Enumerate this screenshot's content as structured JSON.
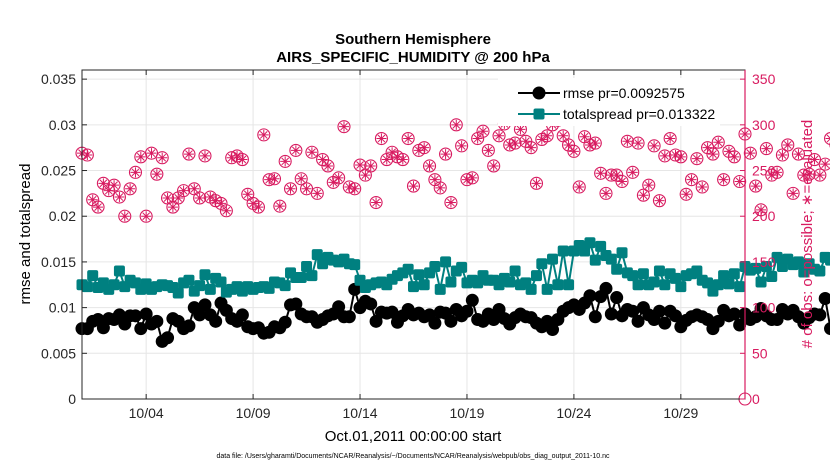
{
  "chart_data": {
    "type": "line",
    "title": "Southern Hemisphere",
    "subtitle": "AIRS_SPECIFIC_HUMIDITY @ 200 hPa",
    "xlabel": "Oct.01,2011 00:00:00 start",
    "ylabel": "rmse and totalspread",
    "ylabel_right": "# of obs: o=possible; ∗=evaluated",
    "footnote": "data file: /Users/gharamti/Documents/NCAR/Reanalysis/~/Documents/NCAR/Reanalysis/webpub/obs_diag_output_2011-10.nc",
    "xlim": [
      1,
      32
    ],
    "ylim": [
      0,
      0.036
    ],
    "ylim_right": [
      0,
      360
    ],
    "x_ticks": [
      {
        "v": 4,
        "label": "10/04"
      },
      {
        "v": 9,
        "label": "10/09"
      },
      {
        "v": 14,
        "label": "10/14"
      },
      {
        "v": 19,
        "label": "10/19"
      },
      {
        "v": 24,
        "label": "10/24"
      },
      {
        "v": 29,
        "label": "10/29"
      }
    ],
    "y_ticks": [
      {
        "v": 0,
        "label": "0"
      },
      {
        "v": 0.005,
        "label": "0.005"
      },
      {
        "v": 0.01,
        "label": "0.01"
      },
      {
        "v": 0.015,
        "label": "0.015"
      },
      {
        "v": 0.02,
        "label": "0.02"
      },
      {
        "v": 0.025,
        "label": "0.025"
      },
      {
        "v": 0.03,
        "label": "0.03"
      },
      {
        "v": 0.035,
        "label": "0.035"
      }
    ],
    "y_ticks_right": [
      {
        "v": 0,
        "label": "0"
      },
      {
        "v": 50,
        "label": "50"
      },
      {
        "v": 100,
        "label": "100"
      },
      {
        "v": 150,
        "label": "150"
      },
      {
        "v": 200,
        "label": "200"
      },
      {
        "v": 250,
        "label": "250"
      },
      {
        "v": 300,
        "label": "300"
      },
      {
        "v": 350,
        "label": "350"
      }
    ],
    "grid": true,
    "legend_position": "top-right",
    "x_start": 1.0,
    "x_step": 0.25,
    "series": [
      {
        "name": "rmse pr=0.0092575",
        "color": "#000000",
        "marker": "circle",
        "axis": "left",
        "values": [
          0.0077,
          0.0077,
          0.0085,
          0.0087,
          0.0078,
          0.0088,
          0.0087,
          0.0092,
          0.0082,
          0.0091,
          0.0091,
          0.0077,
          0.0093,
          0.0082,
          0.0085,
          0.0063,
          0.0067,
          0.0088,
          0.0085,
          0.0077,
          0.008,
          0.01,
          0.0092,
          0.0103,
          0.0092,
          0.0085,
          0.0105,
          0.0097,
          0.0088,
          0.0085,
          0.0092,
          0.0079,
          0.0077,
          0.0078,
          0.0072,
          0.0073,
          0.0079,
          0.0078,
          0.0084,
          0.0103,
          0.0104,
          0.0093,
          0.009,
          0.009,
          0.0084,
          0.0087,
          0.0091,
          0.0093,
          0.0101,
          0.009,
          0.009,
          0.012,
          0.01,
          0.0107,
          0.0104,
          0.0085,
          0.0095,
          0.0094,
          0.0095,
          0.0084,
          0.0091,
          0.0098,
          0.0092,
          0.0094,
          0.009,
          0.0092,
          0.0083,
          0.0095,
          0.0094,
          0.0085,
          0.0098,
          0.0091,
          0.0096,
          0.0108,
          0.0087,
          0.0085,
          0.0093,
          0.0087,
          0.0098,
          0.0088,
          0.0082,
          0.0089,
          0.0093,
          0.009,
          0.0089,
          0.0083,
          0.0079,
          0.0085,
          0.0076,
          0.0087,
          0.0096,
          0.01,
          0.0103,
          0.0098,
          0.0105,
          0.0113,
          0.009,
          0.0112,
          0.0121,
          0.0093,
          0.0111,
          0.0091,
          0.0098,
          0.0096,
          0.0085,
          0.01,
          0.0092,
          0.0087,
          0.0096,
          0.0083,
          0.0096,
          0.0091,
          0.0079,
          0.0086,
          0.009,
          0.0092,
          0.009,
          0.0087,
          0.0077,
          0.0085,
          0.0097,
          0.0091,
          0.0093,
          0.0081,
          0.0093,
          0.0087,
          0.009,
          0.0099,
          0.0091,
          0.0087,
          0.0087,
          0.0098,
          0.0093,
          0.0097,
          0.009,
          0.0083,
          0.0089,
          0.0093,
          0.0092,
          0.011,
          0.0077,
          0.0076
        ]
      },
      {
        "name": "totalspread pr=0.013322",
        "color": "#008080",
        "marker": "square",
        "axis": "left",
        "values": [
          0.0125,
          0.0123,
          0.0135,
          0.0122,
          0.0127,
          0.012,
          0.0125,
          0.014,
          0.0123,
          0.013,
          0.0127,
          0.012,
          0.0126,
          0.012,
          0.0123,
          0.0125,
          0.0124,
          0.0122,
          0.0116,
          0.0127,
          0.013,
          0.0118,
          0.0124,
          0.0136,
          0.012,
          0.0132,
          0.0128,
          0.0117,
          0.012,
          0.0123,
          0.0118,
          0.0123,
          0.012,
          0.0122,
          0.0123,
          0.0121,
          0.0128,
          0.0127,
          0.0124,
          0.0138,
          0.0133,
          0.0133,
          0.0145,
          0.0135,
          0.0158,
          0.0148,
          0.0155,
          0.0152,
          0.015,
          0.0153,
          0.0148,
          0.0147,
          0.013,
          0.0122,
          0.0125,
          0.0127,
          0.0128,
          0.0125,
          0.0131,
          0.0135,
          0.0138,
          0.0142,
          0.0123,
          0.0136,
          0.0125,
          0.0138,
          0.0145,
          0.012,
          0.015,
          0.0128,
          0.014,
          0.0144,
          0.0127,
          0.013,
          0.0127,
          0.0135,
          0.013,
          0.013,
          0.0125,
          0.0132,
          0.0128,
          0.014,
          0.0125,
          0.0127,
          0.012,
          0.0135,
          0.0148,
          0.012,
          0.0153,
          0.0125,
          0.0162,
          0.0125,
          0.0162,
          0.0168,
          0.0162,
          0.0171,
          0.0152,
          0.0167,
          0.0157,
          0.0153,
          0.0142,
          0.016,
          0.0138,
          0.0135,
          0.0125,
          0.0137,
          0.0125,
          0.0128,
          0.014,
          0.0125,
          0.0137,
          0.0132,
          0.0123,
          0.0135,
          0.0137,
          0.014,
          0.013,
          0.0127,
          0.0118,
          0.0125,
          0.0135,
          0.0126,
          0.0137,
          0.0123,
          0.0145,
          0.0141,
          0.0143,
          0.0128,
          0.0145,
          0.0134,
          0.0155,
          0.0145,
          0.0153,
          0.0147,
          0.015,
          0.0139,
          0.0148,
          0.0142,
          0.014,
          0.0155,
          0.0152,
          0.0137
        ]
      },
      {
        "name": "possible",
        "color": "#d81b60",
        "marker": "circle-open",
        "axis": "right",
        "values": [
          269,
          267,
          218,
          210,
          236,
          228,
          234,
          221,
          200,
          230,
          248,
          265,
          200,
          269,
          246,
          264,
          220,
          210,
          220,
          228,
          268,
          230,
          220,
          266,
          221,
          217,
          214,
          206,
          264,
          266,
          262,
          224,
          214,
          210,
          289,
          240,
          241,
          211,
          260,
          230,
          272,
          241,
          230,
          270,
          225,
          262,
          255,
          237,
          242,
          298,
          232,
          230,
          256,
          245,
          255,
          215,
          285,
          262,
          270,
          265,
          262,
          285,
          233,
          272,
          275,
          255,
          240,
          231,
          268,
          215,
          300,
          277,
          240,
          242,
          285,
          293,
          272,
          255,
          288,
          301,
          278,
          280,
          295,
          282,
          275,
          236,
          284,
          288,
          300,
          305,
          288,
          278,
          271,
          232,
          287,
          278,
          280,
          247,
          225,
          245,
          245,
          238,
          282,
          248,
          280,
          223,
          234,
          277,
          217,
          266,
          285,
          267,
          265,
          224,
          240,
          263,
          232,
          275,
          268,
          281,
          240,
          271,
          265,
          238,
          290,
          269,
          233,
          207,
          274,
          245,
          248,
          267,
          278,
          225,
          268,
          245,
          246,
          262,
          245,
          257,
          285,
          278,
          270,
          224,
          305,
          213,
          262,
          240,
          274,
          258,
          287,
          271,
          270,
          245,
          233,
          252,
          273,
          281,
          262,
          254,
          245,
          252,
          220,
          230,
          264,
          235,
          292
        ]
      },
      {
        "name": "evaluated",
        "color": "#d81b60",
        "marker": "asterisk",
        "axis": "right",
        "values": [
          269,
          267,
          218,
          210,
          236,
          228,
          234,
          221,
          200,
          230,
          248,
          265,
          200,
          269,
          246,
          264,
          220,
          210,
          220,
          228,
          268,
          230,
          220,
          266,
          221,
          217,
          214,
          206,
          264,
          266,
          262,
          224,
          214,
          210,
          289,
          240,
          241,
          211,
          260,
          230,
          272,
          241,
          230,
          270,
          225,
          262,
          255,
          237,
          242,
          298,
          232,
          230,
          256,
          245,
          255,
          215,
          285,
          262,
          270,
          265,
          262,
          285,
          233,
          272,
          275,
          255,
          240,
          231,
          268,
          215,
          300,
          277,
          240,
          242,
          285,
          293,
          272,
          255,
          288,
          301,
          278,
          280,
          295,
          282,
          275,
          236,
          284,
          288,
          300,
          305,
          288,
          278,
          271,
          232,
          287,
          278,
          280,
          247,
          225,
          245,
          245,
          238,
          282,
          248,
          280,
          223,
          234,
          277,
          217,
          266,
          285,
          267,
          265,
          224,
          240,
          263,
          232,
          275,
          268,
          281,
          240,
          271,
          265,
          238,
          290,
          269,
          233,
          207,
          274,
          245,
          248,
          267,
          278,
          225,
          268,
          245,
          246,
          262,
          245,
          257,
          285,
          278,
          270,
          224,
          305,
          213,
          262,
          240,
          274,
          258,
          287,
          271,
          270,
          245,
          233,
          252,
          273,
          281,
          262,
          254,
          245,
          252,
          220,
          230,
          264,
          235,
          292
        ]
      }
    ],
    "right_axis_color": "#d81b60"
  }
}
